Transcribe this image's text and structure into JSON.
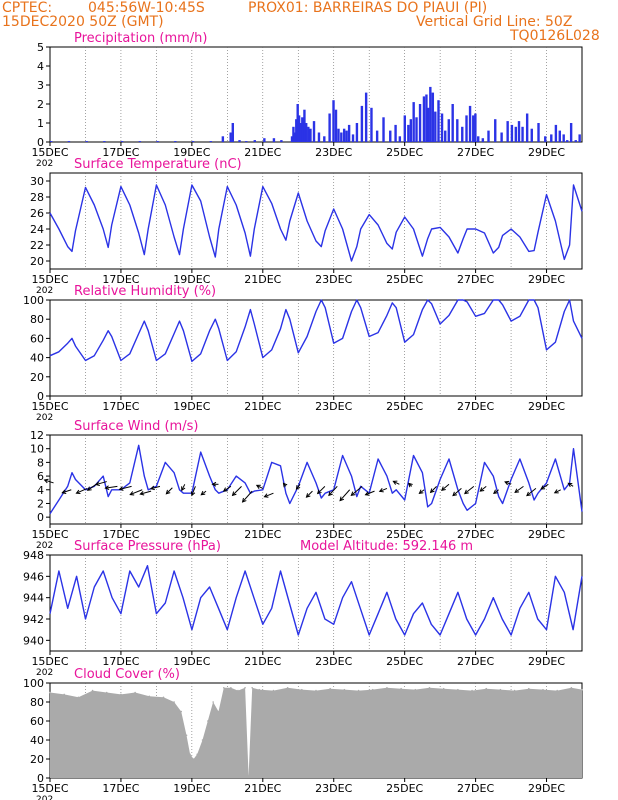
{
  "header": {
    "center_label": "CPTEC:",
    "coords": "045:56W-10:45S",
    "station": "PROX01: BARREIRAS DO PIAUI (PI)",
    "run": "15DEC2020 50Z (GMT)",
    "grid_note": "Vertical Grid Line: 50Z",
    "code": "TQ0126L028"
  },
  "colors": {
    "header": "#e8731c",
    "panel_title": "#e8149b",
    "series": "#2b33e6",
    "cloud": "#aaaaaa",
    "grid": "#666666"
  },
  "x_axis": {
    "start_day": 15,
    "end_day": 30,
    "tick_labels": [
      "15DEC",
      "17DEC",
      "19DEC",
      "21DEC",
      "23DEC",
      "25DEC",
      "27DEC",
      "29DEC"
    ],
    "tick_days": [
      15,
      17,
      19,
      21,
      23,
      25,
      27,
      29
    ],
    "year_stub": "202"
  },
  "chart_data": [
    {
      "type": "bar",
      "title": "Precipitation (mm/h)",
      "ylim": [
        0,
        5
      ],
      "yticks": [
        0,
        1,
        2,
        3,
        4,
        5
      ],
      "x": [
        15.0,
        15.5,
        16.0,
        16.5,
        17.0,
        17.5,
        18.0,
        18.5,
        19.0,
        19.5,
        19.84,
        20.06,
        20.12,
        20.31,
        20.5,
        20.74,
        21.01,
        21.28,
        21.49,
        21.79,
        21.83,
        21.86,
        21.91,
        21.95,
        21.99,
        22.04,
        22.08,
        22.14,
        22.19,
        22.25,
        22.31,
        22.41,
        22.55,
        22.7,
        22.85,
        22.96,
        23.03,
        23.1,
        23.18,
        23.26,
        23.33,
        23.4,
        23.51,
        23.62,
        23.76,
        23.88,
        24.03,
        24.19,
        24.37,
        24.56,
        24.71,
        24.83,
        24.97,
        25.07,
        25.14,
        25.22,
        25.3,
        25.4,
        25.51,
        25.58,
        25.63,
        25.69,
        25.76,
        25.83,
        25.92,
        26.02,
        26.11,
        26.21,
        26.32,
        26.45,
        26.59,
        26.71,
        26.81,
        26.9,
        26.96,
        27.04,
        27.17,
        27.33,
        27.52,
        27.7,
        27.87,
        27.99,
        28.1,
        28.19,
        28.29,
        28.42,
        28.55,
        28.74,
        28.93,
        29.1,
        29.23,
        29.34,
        29.45,
        29.55,
        29.66,
        29.79,
        29.9
      ],
      "values": [
        0.05,
        0.05,
        0.05,
        0.05,
        0.05,
        0.05,
        0.05,
        0.05,
        0.05,
        0.05,
        0.3,
        0.5,
        1.0,
        0.1,
        0.05,
        0.1,
        0.2,
        0.2,
        0.1,
        0.3,
        0.8,
        0.5,
        1.2,
        2.0,
        1.4,
        1.0,
        1.3,
        1.7,
        1.0,
        0.8,
        0.7,
        1.1,
        0.5,
        0.3,
        1.5,
        2.2,
        1.7,
        0.7,
        0.5,
        0.7,
        0.6,
        0.9,
        0.4,
        1.0,
        1.9,
        2.6,
        1.8,
        0.6,
        1.3,
        0.6,
        0.9,
        0.3,
        1.4,
        0.9,
        1.2,
        2.1,
        1.3,
        2.0,
        2.4,
        2.5,
        1.8,
        2.9,
        2.6,
        1.6,
        2.2,
        1.5,
        0.6,
        1.2,
        2.0,
        1.2,
        0.8,
        1.4,
        1.9,
        1.4,
        1.5,
        0.3,
        0.2,
        0.6,
        1.2,
        0.5,
        1.1,
        0.9,
        0.8,
        1.1,
        0.8,
        1.5,
        0.7,
        1.0,
        0.3,
        0.4,
        0.9,
        0.6,
        0.4,
        0.1,
        1.0,
        0.1,
        0.4
      ]
    },
    {
      "type": "line",
      "title": "Surface Temperature (nC)",
      "ylim": [
        19,
        31
      ],
      "yticks": [
        20,
        22,
        24,
        26,
        28,
        30
      ],
      "x": [
        15.0,
        15.25,
        15.5,
        15.62,
        15.72,
        16.0,
        16.25,
        16.5,
        16.64,
        16.74,
        17.0,
        17.25,
        17.5,
        17.66,
        17.77,
        18.0,
        18.25,
        18.5,
        18.65,
        18.76,
        19.0,
        19.25,
        19.5,
        19.66,
        19.76,
        20.0,
        20.25,
        20.5,
        20.65,
        20.76,
        21.0,
        21.25,
        21.5,
        21.65,
        21.76,
        22.0,
        22.25,
        22.5,
        22.65,
        22.76,
        23.0,
        23.25,
        23.5,
        23.65,
        23.76,
        24.0,
        24.25,
        24.5,
        24.65,
        24.76,
        25.0,
        25.25,
        25.5,
        25.65,
        25.76,
        26.0,
        26.25,
        26.5,
        26.65,
        26.76,
        27.0,
        27.25,
        27.5,
        27.65,
        27.76,
        28.0,
        28.25,
        28.5,
        28.65,
        28.76,
        29.0,
        29.25,
        29.5,
        29.65,
        29.76,
        30.0
      ],
      "values": [
        26.0,
        24.0,
        21.8,
        21.2,
        23.8,
        29.2,
        27.0,
        24.0,
        21.7,
        24.5,
        29.3,
        27.0,
        23.5,
        20.8,
        24.0,
        29.5,
        27.0,
        23.0,
        20.8,
        24.0,
        29.5,
        27.5,
        23.0,
        20.5,
        24.0,
        29.3,
        27.0,
        23.5,
        20.6,
        24.0,
        29.3,
        27.2,
        24.0,
        22.6,
        25.0,
        28.5,
        25.0,
        22.5,
        21.8,
        23.8,
        26.5,
        24.0,
        20.0,
        21.8,
        24.0,
        25.8,
        24.5,
        22.2,
        21.5,
        23.6,
        25.5,
        24.0,
        20.6,
        22.8,
        24.0,
        24.2,
        23.0,
        21.0,
        22.8,
        24.0,
        24.0,
        23.5,
        21.0,
        21.7,
        23.2,
        24.0,
        23.0,
        21.2,
        21.3,
        23.6,
        28.3,
        25.0,
        20.2,
        22.0,
        29.5,
        26.2
      ]
    },
    {
      "type": "line",
      "title": "Relative Humidity (%)",
      "ylim": [
        0,
        100
      ],
      "yticks": [
        0,
        20,
        40,
        60,
        80,
        100
      ],
      "x": [
        15.0,
        15.25,
        15.5,
        15.62,
        15.72,
        16.0,
        16.25,
        16.5,
        16.64,
        16.74,
        17.0,
        17.25,
        17.5,
        17.66,
        17.77,
        18.0,
        18.25,
        18.5,
        18.65,
        18.76,
        19.0,
        19.25,
        19.5,
        19.66,
        19.76,
        20.0,
        20.25,
        20.5,
        20.65,
        20.76,
        21.0,
        21.25,
        21.5,
        21.65,
        21.76,
        22.0,
        22.25,
        22.5,
        22.65,
        22.76,
        23.0,
        23.25,
        23.5,
        23.65,
        23.76,
        24.0,
        24.25,
        24.5,
        24.65,
        24.76,
        25.0,
        25.25,
        25.5,
        25.65,
        25.76,
        26.0,
        26.25,
        26.5,
        26.65,
        26.76,
        27.0,
        27.25,
        27.5,
        27.65,
        27.76,
        28.0,
        28.25,
        28.5,
        28.65,
        28.76,
        29.0,
        29.25,
        29.5,
        29.65,
        29.76,
        30.0
      ],
      "values": [
        42,
        46,
        55,
        60,
        52,
        37,
        42,
        58,
        68,
        62,
        37,
        44,
        65,
        78,
        68,
        37,
        44,
        65,
        78,
        68,
        36,
        44,
        68,
        80,
        70,
        37,
        46,
        72,
        90,
        75,
        40,
        48,
        70,
        90,
        80,
        45,
        62,
        88,
        100,
        92,
        55,
        60,
        88,
        100,
        92,
        62,
        66,
        84,
        97,
        92,
        56,
        64,
        90,
        100,
        96,
        75,
        84,
        100,
        100,
        98,
        83,
        86,
        100,
        100,
        95,
        78,
        83,
        100,
        100,
        92,
        48,
        56,
        88,
        100,
        78,
        60
      ]
    },
    {
      "type": "line",
      "title": "Surface Wind (m/s)",
      "ylim": [
        -1,
        12
      ],
      "yticks": [
        0,
        2,
        4,
        6,
        8,
        10,
        12
      ],
      "x": [
        15.0,
        15.25,
        15.5,
        15.62,
        15.72,
        16.0,
        16.25,
        16.5,
        16.64,
        16.74,
        17.0,
        17.25,
        17.5,
        17.66,
        17.77,
        18.0,
        18.25,
        18.5,
        18.65,
        18.76,
        19.0,
        19.25,
        19.5,
        19.66,
        19.76,
        20.0,
        20.25,
        20.5,
        20.65,
        20.76,
        21.0,
        21.25,
        21.5,
        21.65,
        21.76,
        22.0,
        22.25,
        22.5,
        22.65,
        22.76,
        23.0,
        23.25,
        23.5,
        23.65,
        23.76,
        24.0,
        24.25,
        24.5,
        24.65,
        24.76,
        25.0,
        25.25,
        25.5,
        25.65,
        25.76,
        26.0,
        26.25,
        26.5,
        26.65,
        26.76,
        27.0,
        27.25,
        27.5,
        27.65,
        27.76,
        28.0,
        28.25,
        28.5,
        28.65,
        28.76,
        29.0,
        29.25,
        29.5,
        29.65,
        29.76,
        30.0
      ],
      "values": [
        0.5,
        2.5,
        4.5,
        6.5,
        5.5,
        4.0,
        4.5,
        6.0,
        3.0,
        4.0,
        4.0,
        5.0,
        10.5,
        6.0,
        4.0,
        4.5,
        8.0,
        6.5,
        4.0,
        3.5,
        3.5,
        9.5,
        6.0,
        4.0,
        3.5,
        4.0,
        6.0,
        5.0,
        3.5,
        3.8,
        4.0,
        8.0,
        7.5,
        3.5,
        2.0,
        4.5,
        8.0,
        5.0,
        2.8,
        3.5,
        4.0,
        9.0,
        6.0,
        3.0,
        4.5,
        3.5,
        8.5,
        6.0,
        3.5,
        4.0,
        2.5,
        9.0,
        6.5,
        1.5,
        2.0,
        5.5,
        8.5,
        4.0,
        2.0,
        1.0,
        2.0,
        8.0,
        6.0,
        3.0,
        2.0,
        5.5,
        8.5,
        5.0,
        2.5,
        3.5,
        5.0,
        8.5,
        4.0,
        5.0,
        10.0,
        0.8
      ],
      "arrows": {
        "x": [
          15.1,
          15.6,
          16.05,
          16.3,
          16.6,
          16.9,
          17.3,
          17.6,
          17.85,
          18.1,
          18.45,
          18.8,
          19.1,
          19.4,
          19.75,
          20.1,
          20.4,
          20.7,
          21.0,
          21.3,
          21.65,
          22.05,
          22.4,
          22.75,
          23.1,
          23.45,
          23.8,
          24.15,
          24.5,
          24.85,
          25.2,
          25.55,
          25.9,
          26.25,
          26.6,
          26.95,
          27.3,
          27.65,
          28.0,
          28.35,
          28.7,
          29.05,
          29.4,
          29.75
        ],
        "y": [
          5.0,
          4.0,
          4.2,
          4.8,
          5.2,
          4.5,
          4.5,
          4.0,
          3.8,
          4.5,
          4.3,
          4.8,
          4.5,
          3.8,
          4.8,
          4.5,
          4.5,
          3.8,
          4.2,
          3.5,
          4.5,
          4.8,
          3.8,
          4.5,
          4.5,
          4.0,
          4.5,
          3.8,
          4.2,
          4.8,
          4.5,
          4.0,
          4.5,
          4.8,
          4.2,
          4.5,
          4.5,
          4.0,
          4.8,
          4.5,
          4.2,
          4.8,
          4.0,
          4.5
        ],
        "u": [
          -1.5,
          -1.5,
          -1.8,
          -1.4,
          -1.8,
          -2.0,
          -2.0,
          -2.0,
          -1.8,
          -1.5,
          -1.0,
          -0.5,
          -0.6,
          -0.8,
          -1.0,
          -1.2,
          -1.5,
          -1.6,
          -1.0,
          -1.5,
          -0.4,
          -0.6,
          -1.0,
          -1.2,
          -1.4,
          -1.6,
          -1.8,
          -1.5,
          -1.2,
          -1.0,
          -0.5,
          -0.8,
          -1.0,
          -1.2,
          -1.4,
          -1.5,
          -1.0,
          -0.8,
          -1.0,
          -1.4,
          -1.5,
          -1.2,
          -1.0,
          -0.8
        ],
        "v": [
          0.5,
          -0.5,
          -0.8,
          -1.0,
          -0.5,
          -0.3,
          -0.5,
          -0.8,
          -0.5,
          -0.4,
          -1.0,
          -1.0,
          -1.5,
          -0.6,
          0.0,
          -0.8,
          -1.5,
          -1.8,
          0.5,
          -0.6,
          0.5,
          -0.8,
          -1.0,
          -1.2,
          -1.5,
          -1.8,
          -1.5,
          -0.6,
          -0.5,
          0.5,
          0.5,
          -0.6,
          -1.0,
          -1.0,
          -1.2,
          -1.2,
          -0.8,
          -0.6,
          0.4,
          -1.0,
          -1.2,
          -0.8,
          -0.5,
          0.5
        ]
      }
    },
    {
      "type": "line",
      "title": "Surface Pressure (hPa)",
      "annotation": "Model Altitude: 592.146  m",
      "ylim": [
        939,
        948
      ],
      "yticks": [
        940,
        942,
        944,
        946,
        948
      ],
      "x": [
        15.0,
        15.25,
        15.5,
        15.75,
        16.0,
        16.25,
        16.5,
        16.75,
        17.0,
        17.25,
        17.5,
        17.75,
        18.0,
        18.25,
        18.5,
        18.75,
        19.0,
        19.25,
        19.5,
        19.75,
        20.0,
        20.25,
        20.5,
        20.75,
        21.0,
        21.25,
        21.5,
        21.75,
        22.0,
        22.25,
        22.5,
        22.75,
        23.0,
        23.25,
        23.5,
        23.75,
        24.0,
        24.25,
        24.5,
        24.75,
        25.0,
        25.25,
        25.5,
        25.75,
        26.0,
        26.25,
        26.5,
        26.75,
        27.0,
        27.25,
        27.5,
        27.75,
        28.0,
        28.25,
        28.5,
        28.75,
        29.0,
        29.25,
        29.5,
        29.75,
        30.0
      ],
      "values": [
        942.5,
        946.5,
        943.0,
        946.0,
        942.0,
        945.0,
        946.5,
        944.0,
        942.5,
        946.5,
        945.0,
        947.0,
        942.5,
        943.5,
        946.5,
        944.0,
        941.0,
        944.0,
        945.0,
        943.0,
        941.0,
        944.0,
        946.5,
        944.0,
        941.5,
        943.0,
        946.5,
        943.5,
        940.5,
        943.0,
        944.5,
        942.0,
        941.5,
        944.0,
        945.5,
        943.0,
        940.5,
        942.5,
        944.5,
        942.0,
        940.5,
        942.5,
        943.5,
        941.5,
        940.5,
        942.5,
        944.5,
        942.0,
        940.5,
        942.0,
        944.0,
        942.0,
        940.5,
        943.0,
        944.5,
        942.0,
        941.0,
        946.0,
        944.5,
        941.0,
        946.0
      ]
    },
    {
      "type": "bar",
      "title": "Cloud Cover (%)",
      "ylim": [
        0,
        100
      ],
      "yticks": [
        0,
        20,
        40,
        60,
        80,
        100
      ],
      "x": [
        15.0,
        15.4,
        15.8,
        16.2,
        16.6,
        17.0,
        17.4,
        17.8,
        18.2,
        18.5,
        18.7,
        18.85,
        18.95,
        19.05,
        19.15,
        19.3,
        19.45,
        19.6,
        19.75,
        19.9,
        20.1,
        20.3,
        20.5,
        20.6,
        20.7,
        20.9,
        21.3,
        21.7,
        22.1,
        22.5,
        22.9,
        23.3,
        23.7,
        24.1,
        24.5,
        24.9,
        25.3,
        25.7,
        26.1,
        26.5,
        26.9,
        27.3,
        27.7,
        28.1,
        28.5,
        28.9,
        29.3,
        29.7,
        30.0
      ],
      "values": [
        90,
        88,
        85,
        92,
        90,
        88,
        90,
        86,
        85,
        80,
        70,
        45,
        25,
        20,
        25,
        40,
        60,
        80,
        70,
        95,
        95,
        92,
        95,
        2,
        95,
        93,
        92,
        95,
        93,
        92,
        94,
        93,
        92,
        93,
        95,
        94,
        93,
        95,
        94,
        93,
        92,
        94,
        93,
        92,
        94,
        93,
        92,
        95,
        93
      ]
    }
  ]
}
